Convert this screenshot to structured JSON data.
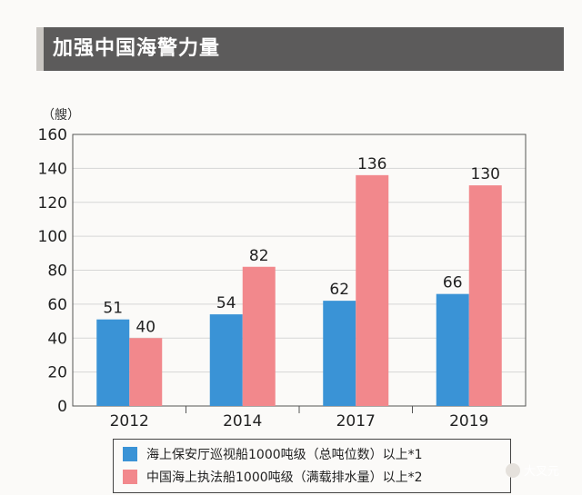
{
  "header": {
    "title": "加强中国海警力量"
  },
  "chart_data": {
    "type": "bar",
    "unit_label": "（艘）",
    "categories": [
      "2012",
      "2014",
      "2017",
      "2019"
    ],
    "series": [
      {
        "name": "海上保安厅巡视船1000吨级（总吨位数）以上*1",
        "color": "#3a93d6",
        "values": [
          51,
          54,
          62,
          66
        ]
      },
      {
        "name": "中国海上执法船1000吨级（满载排水量）以上*2",
        "color": "#f2888c",
        "values": [
          40,
          82,
          136,
          130
        ]
      }
    ],
    "ylim": [
      0,
      160
    ],
    "yticks": [
      0,
      20,
      40,
      60,
      80,
      100,
      120,
      140,
      160
    ],
    "grid": true,
    "legend_position": "bottom"
  },
  "watermark": {
    "text": "大叉元"
  }
}
